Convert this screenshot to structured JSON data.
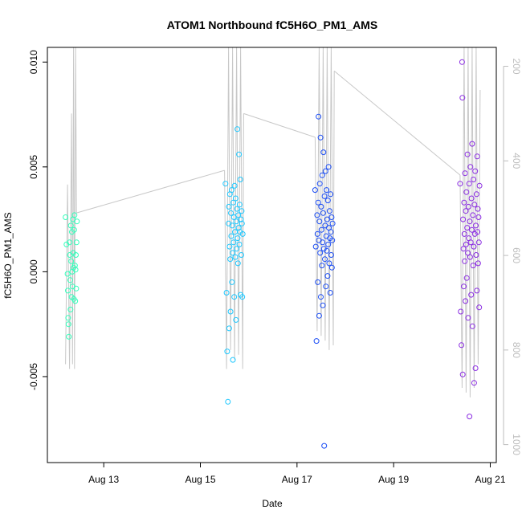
{
  "chart_data": {
    "type": "scatter",
    "title": "ATOM1 Northbound fC5H6O_PM1_AMS",
    "xlabel": "Date",
    "ylabel": "fC5H6O_PM1_AMS",
    "x_is_date": true,
    "xlim": [
      "2016-08-11 20:00",
      "2016-08-21 03:00"
    ],
    "ylim": [
      -0.0091,
      0.0107
    ],
    "y_ticks": [
      -0.005,
      0.0,
      0.005,
      0.01
    ],
    "y_tick_labels": [
      "-0.005",
      "0.000",
      "0.005",
      "0.010"
    ],
    "x_ticks": [
      "2016-08-13",
      "2016-08-15",
      "2016-08-17",
      "2016-08-19",
      "2016-08-21"
    ],
    "x_tick_labels": [
      "Aug 13",
      "Aug 15",
      "Aug 17",
      "Aug 19",
      "Aug 21"
    ],
    "secondary_axis": {
      "position": "right",
      "color": "#bdbdbd",
      "ylim": [
        1038,
        160
      ],
      "ticks": [
        200,
        400,
        600,
        800,
        1000
      ],
      "tick_labels": [
        "200",
        "400",
        "600",
        "800",
        "1000"
      ],
      "series_color": "#c8c8c8"
    },
    "legend": "none",
    "grid": false,
    "series": [
      {
        "color": "#33ffbb",
        "points": [
          [
            "2016-08-12 05:00",
            0.0026
          ],
          [
            "2016-08-12 05:30",
            0.0013
          ],
          [
            "2016-08-12 06:00",
            -0.0001
          ],
          [
            "2016-08-12 06:10",
            -0.0009
          ],
          [
            "2016-08-12 06:20",
            -0.0022
          ],
          [
            "2016-08-12 06:30",
            -0.0025
          ],
          [
            "2016-08-12 06:40",
            -0.0031
          ],
          [
            "2016-08-12 07:00",
            0.0014
          ],
          [
            "2016-08-12 07:10",
            0.0008
          ],
          [
            "2016-08-12 07:20",
            -0.0004
          ],
          [
            "2016-08-12 07:30",
            -0.0018
          ],
          [
            "2016-08-12 07:40",
            0.0022
          ],
          [
            "2016-08-12 07:50",
            0.0005
          ],
          [
            "2016-08-12 08:00",
            -0.0012
          ],
          [
            "2016-08-12 08:10",
            0.0019
          ],
          [
            "2016-08-12 08:20",
            0.0
          ],
          [
            "2016-08-12 08:30",
            -0.0007
          ],
          [
            "2016-08-12 08:40",
            0.0025
          ],
          [
            "2016-08-12 08:50",
            0.0009
          ],
          [
            "2016-08-12 09:00",
            0.0002
          ],
          [
            "2016-08-12 09:10",
            -0.0013
          ],
          [
            "2016-08-12 09:20",
            0.002
          ],
          [
            "2016-08-12 09:30",
            0.0027
          ],
          [
            "2016-08-12 09:40",
            0.0003
          ],
          [
            "2016-08-12 09:50",
            -0.0014
          ],
          [
            "2016-08-12 10:00",
            0.0001
          ],
          [
            "2016-08-12 10:10",
            0.0008
          ],
          [
            "2016-08-12 10:20",
            -0.0008
          ],
          [
            "2016-08-12 10:30",
            0.0014
          ],
          [
            "2016-08-12 10:40",
            0.0024
          ]
        ]
      },
      {
        "color": "#1ec8ff",
        "points": [
          [
            "2016-08-15 12:30",
            0.0042
          ],
          [
            "2016-08-15 13:00",
            -0.001
          ],
          [
            "2016-08-15 13:20",
            -0.0038
          ],
          [
            "2016-08-15 13:40",
            -0.0062
          ],
          [
            "2016-08-15 14:00",
            0.0023
          ],
          [
            "2016-08-15 14:10",
            0.0031
          ],
          [
            "2016-08-15 14:20",
            -0.0027
          ],
          [
            "2016-08-15 14:30",
            0.0012
          ],
          [
            "2016-08-15 14:40",
            0.0037
          ],
          [
            "2016-08-15 14:50",
            0.0006
          ],
          [
            "2016-08-15 15:00",
            -0.0019
          ],
          [
            "2016-08-15 15:10",
            0.0028
          ],
          [
            "2016-08-15 15:20",
            0.0017
          ],
          [
            "2016-08-15 15:30",
            0.0039
          ],
          [
            "2016-08-15 15:40",
            -0.0005
          ],
          [
            "2016-08-15 15:50",
            0.0022
          ],
          [
            "2016-08-15 16:00",
            0.0009
          ],
          [
            "2016-08-15 16:10",
            -0.0042
          ],
          [
            "2016-08-15 16:20",
            0.0033
          ],
          [
            "2016-08-15 16:30",
            0.0014
          ],
          [
            "2016-08-15 16:40",
            0.0026
          ],
          [
            "2016-08-15 16:50",
            -0.0012
          ],
          [
            "2016-08-15 17:00",
            0.0041
          ],
          [
            "2016-08-15 17:10",
            0.0019
          ],
          [
            "2016-08-15 17:20",
            0.0007
          ],
          [
            "2016-08-15 17:30",
            0.0035
          ],
          [
            "2016-08-15 17:40",
            -0.0023
          ],
          [
            "2016-08-15 17:50",
            0.0024
          ],
          [
            "2016-08-15 18:00",
            0.0011
          ],
          [
            "2016-08-15 18:10",
            0.003
          ],
          [
            "2016-08-15 18:20",
            0.0068
          ],
          [
            "2016-08-15 18:30",
            0.0016
          ],
          [
            "2016-08-15 18:40",
            0.0004
          ],
          [
            "2016-08-15 18:50",
            0.0027
          ],
          [
            "2016-08-15 19:00",
            0.0021
          ],
          [
            "2016-08-15 19:10",
            0.0056
          ],
          [
            "2016-08-15 19:20",
            0.0013
          ],
          [
            "2016-08-15 19:30",
            0.0032
          ],
          [
            "2016-08-15 19:40",
            0.0019
          ],
          [
            "2016-08-15 19:50",
            0.0044
          ],
          [
            "2016-08-15 20:00",
            -0.0011
          ],
          [
            "2016-08-15 20:10",
            0.0025
          ],
          [
            "2016-08-15 20:20",
            0.0008
          ],
          [
            "2016-08-15 20:30",
            0.0029
          ],
          [
            "2016-08-15 20:40",
            0.0023
          ],
          [
            "2016-08-15 20:50",
            -0.0012
          ],
          [
            "2016-08-15 21:00",
            0.0018
          ]
        ]
      },
      {
        "color": "#1b4df5",
        "points": [
          [
            "2016-08-17 09:00",
            0.0039
          ],
          [
            "2016-08-17 09:20",
            0.0012
          ],
          [
            "2016-08-17 09:40",
            -0.0033
          ],
          [
            "2016-08-17 10:00",
            0.0027
          ],
          [
            "2016-08-17 10:10",
            0.0018
          ],
          [
            "2016-08-17 10:20",
            -0.0005
          ],
          [
            "2016-08-17 10:30",
            0.0033
          ],
          [
            "2016-08-17 10:40",
            0.0074
          ],
          [
            "2016-08-17 10:50",
            0.0015
          ],
          [
            "2016-08-17 11:00",
            -0.0021
          ],
          [
            "2016-08-17 11:10",
            0.0024
          ],
          [
            "2016-08-17 11:20",
            0.0042
          ],
          [
            "2016-08-17 11:30",
            0.0009
          ],
          [
            "2016-08-17 11:40",
            0.0064
          ],
          [
            "2016-08-17 11:50",
            -0.0012
          ],
          [
            "2016-08-17 12:00",
            0.0031
          ],
          [
            "2016-08-17 12:10",
            0.002
          ],
          [
            "2016-08-17 12:20",
            0.0003
          ],
          [
            "2016-08-17 12:30",
            0.0046
          ],
          [
            "2016-08-17 12:40",
            0.0014
          ],
          [
            "2016-08-17 12:50",
            -0.0016
          ],
          [
            "2016-08-17 13:00",
            0.0028
          ],
          [
            "2016-08-17 13:10",
            0.0057
          ],
          [
            "2016-08-17 13:20",
            0.0011
          ],
          [
            "2016-08-17 13:30",
            -0.0083
          ],
          [
            "2016-08-17 13:40",
            0.0036
          ],
          [
            "2016-08-17 13:50",
            0.0006
          ],
          [
            "2016-08-17 14:00",
            0.0022
          ],
          [
            "2016-08-17 14:10",
            0.0048
          ],
          [
            "2016-08-17 14:20",
            -0.0007
          ],
          [
            "2016-08-17 14:30",
            0.0017
          ],
          [
            "2016-08-17 14:40",
            0.0039
          ],
          [
            "2016-08-17 14:50",
            0.001
          ],
          [
            "2016-08-17 15:00",
            0.0025
          ],
          [
            "2016-08-17 15:10",
            -0.0002
          ],
          [
            "2016-08-17 15:20",
            0.0034
          ],
          [
            "2016-08-17 15:30",
            0.0013
          ],
          [
            "2016-08-17 15:40",
            0.005
          ],
          [
            "2016-08-17 15:50",
            0.0021
          ],
          [
            "2016-08-17 16:00",
            0.0004
          ],
          [
            "2016-08-17 16:10",
            0.0029
          ],
          [
            "2016-08-17 16:20",
            0.0016
          ],
          [
            "2016-08-17 16:30",
            -0.001
          ],
          [
            "2016-08-17 16:40",
            0.0037
          ],
          [
            "2016-08-17 16:50",
            0.0019
          ],
          [
            "2016-08-17 17:00",
            0.0008
          ],
          [
            "2016-08-17 17:10",
            0.0026
          ],
          [
            "2016-08-17 17:20",
            0.0002
          ],
          [
            "2016-08-17 17:30",
            0.0015
          ],
          [
            "2016-08-17 17:40",
            0.0023
          ]
        ]
      },
      {
        "color": "#8a2be2",
        "points": [
          [
            "2016-08-20 09:00",
            0.0042
          ],
          [
            "2016-08-20 09:20",
            -0.0019
          ],
          [
            "2016-08-20 09:40",
            -0.0035
          ],
          [
            "2016-08-20 10:00",
            0.01
          ],
          [
            "2016-08-20 10:10",
            0.0083
          ],
          [
            "2016-08-20 10:20",
            -0.0049
          ],
          [
            "2016-08-20 10:30",
            0.0025
          ],
          [
            "2016-08-20 10:40",
            0.0011
          ],
          [
            "2016-08-20 10:50",
            -0.0007
          ],
          [
            "2016-08-20 11:00",
            0.0033
          ],
          [
            "2016-08-20 11:10",
            0.0018
          ],
          [
            "2016-08-20 11:20",
            0.0005
          ],
          [
            "2016-08-20 11:30",
            0.0047
          ],
          [
            "2016-08-20 11:40",
            -0.0014
          ],
          [
            "2016-08-20 11:50",
            0.0029
          ],
          [
            "2016-08-20 12:00",
            0.0013
          ],
          [
            "2016-08-20 12:10",
            0.0038
          ],
          [
            "2016-08-20 12:20",
            -0.0003
          ],
          [
            "2016-08-20 12:30",
            0.0021
          ],
          [
            "2016-08-20 12:40",
            0.0056
          ],
          [
            "2016-08-20 12:50",
            0.0009
          ],
          [
            "2016-08-20 13:00",
            -0.0022
          ],
          [
            "2016-08-20 13:10",
            0.0031
          ],
          [
            "2016-08-20 13:20",
            0.0016
          ],
          [
            "2016-08-20 13:30",
            0.0042
          ],
          [
            "2016-08-20 13:40",
            -0.0069
          ],
          [
            "2016-08-20 13:50",
            0.0024
          ],
          [
            "2016-08-20 14:00",
            0.0007
          ],
          [
            "2016-08-20 14:10",
            0.005
          ],
          [
            "2016-08-20 14:20",
            0.0014
          ],
          [
            "2016-08-20 14:30",
            -0.0011
          ],
          [
            "2016-08-20 14:40",
            0.0035
          ],
          [
            "2016-08-20 14:50",
            0.002
          ],
          [
            "2016-08-20 15:00",
            0.0061
          ],
          [
            "2016-08-20 15:10",
            -0.0026
          ],
          [
            "2016-08-20 15:20",
            0.0027
          ],
          [
            "2016-08-20 15:30",
            0.0003
          ],
          [
            "2016-08-20 15:40",
            0.0044
          ],
          [
            "2016-08-20 15:50",
            0.0012
          ],
          [
            "2016-08-20 16:00",
            -0.0053
          ],
          [
            "2016-08-20 16:10",
            0.0032
          ],
          [
            "2016-08-20 16:20",
            0.0018
          ],
          [
            "2016-08-20 16:30",
            0.0048
          ],
          [
            "2016-08-20 16:40",
            -0.0046
          ],
          [
            "2016-08-20 16:50",
            0.0022
          ],
          [
            "2016-08-20 17:00",
            0.0008
          ],
          [
            "2016-08-20 17:10",
            0.0037
          ],
          [
            "2016-08-20 17:20",
            -0.0009
          ],
          [
            "2016-08-20 17:30",
            0.0055
          ],
          [
            "2016-08-20 17:40",
            0.0019
          ],
          [
            "2016-08-20 17:50",
            0.003
          ],
          [
            "2016-08-20 18:00",
            0.0004
          ],
          [
            "2016-08-20 18:10",
            0.0026
          ],
          [
            "2016-08-20 18:20",
            0.0014
          ],
          [
            "2016-08-20 18:30",
            -0.0017
          ],
          [
            "2016-08-20 18:40",
            0.0041
          ]
        ]
      }
    ],
    "secondary_series": {
      "color": "#c8c8c8",
      "segments": [
        [
          [
            "2016-08-12 05:00",
            830
          ],
          [
            "2016-08-12 06:00",
            450
          ],
          [
            "2016-08-12 07:00",
            840
          ],
          [
            "2016-08-12 08:00",
            300
          ],
          [
            "2016-08-12 08:30",
            830
          ],
          [
            "2016-08-12 09:00",
            160
          ],
          [
            "2016-08-12 09:30",
            840
          ],
          [
            "2016-08-12 10:00",
            160
          ],
          [
            "2016-08-12 10:30",
            510
          ]
        ],
        [
          [
            "2016-08-12 10:30",
            510
          ],
          [
            "2016-08-15 12:00",
            420
          ]
        ],
        [
          [
            "2016-08-15 12:00",
            420
          ],
          [
            "2016-08-15 13:00",
            840
          ],
          [
            "2016-08-15 14:00",
            160
          ],
          [
            "2016-08-15 15:00",
            800
          ],
          [
            "2016-08-15 16:00",
            160
          ],
          [
            "2016-08-15 17:00",
            820
          ],
          [
            "2016-08-15 18:00",
            160
          ],
          [
            "2016-08-15 19:00",
            810
          ],
          [
            "2016-08-15 20:00",
            160
          ],
          [
            "2016-08-15 21:00",
            840
          ],
          [
            "2016-08-15 21:30",
            300
          ]
        ],
        [
          [
            "2016-08-15 21:30",
            300
          ],
          [
            "2016-08-17 09:00",
            350
          ]
        ],
        [
          [
            "2016-08-17 09:00",
            350
          ],
          [
            "2016-08-17 10:00",
            760
          ],
          [
            "2016-08-17 11:00",
            160
          ],
          [
            "2016-08-17 12:00",
            770
          ],
          [
            "2016-08-17 13:00",
            160
          ],
          [
            "2016-08-17 14:00",
            780
          ],
          [
            "2016-08-17 15:00",
            160
          ],
          [
            "2016-08-17 16:00",
            800
          ],
          [
            "2016-08-17 17:00",
            160
          ],
          [
            "2016-08-17 18:00",
            790
          ],
          [
            "2016-08-17 18:30",
            210
          ]
        ],
        [
          [
            "2016-08-17 18:30",
            210
          ],
          [
            "2016-08-20 09:00",
            430
          ]
        ],
        [
          [
            "2016-08-20 09:00",
            430
          ],
          [
            "2016-08-20 10:00",
            880
          ],
          [
            "2016-08-20 11:00",
            160
          ],
          [
            "2016-08-20 12:00",
            890
          ],
          [
            "2016-08-20 13:00",
            160
          ],
          [
            "2016-08-20 14:00",
            900
          ],
          [
            "2016-08-20 15:00",
            160
          ],
          [
            "2016-08-20 16:00",
            880
          ],
          [
            "2016-08-20 17:00",
            160
          ],
          [
            "2016-08-20 18:00",
            830
          ],
          [
            "2016-08-20 19:00",
            250
          ]
        ]
      ]
    }
  }
}
